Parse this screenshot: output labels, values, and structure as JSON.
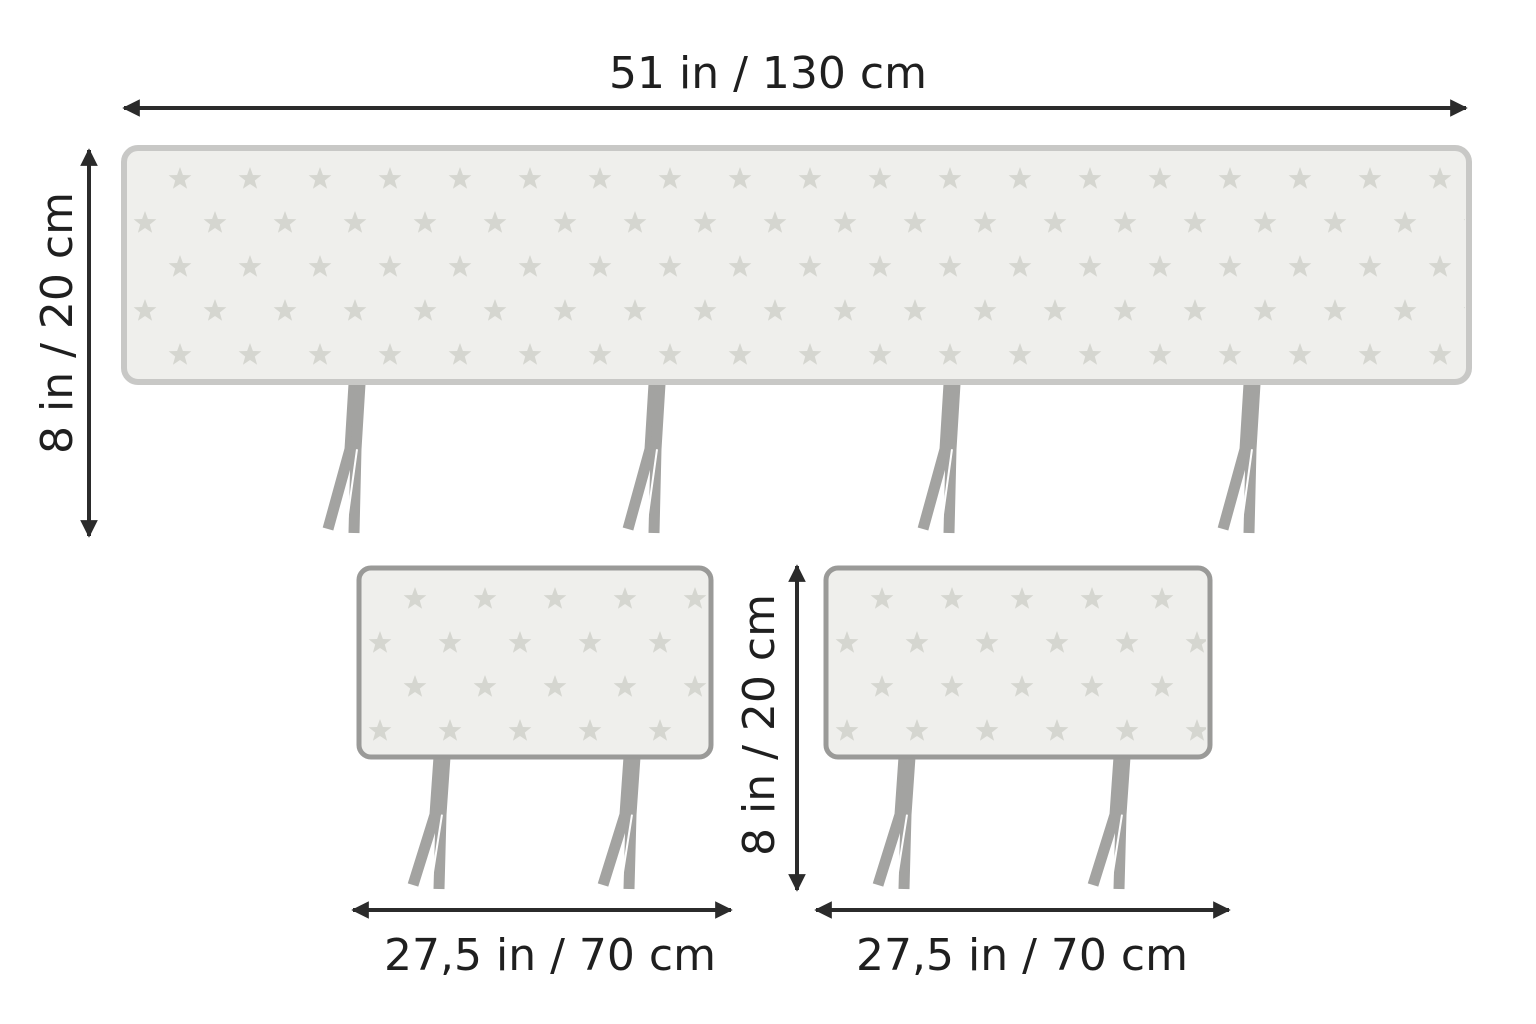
{
  "labels": {
    "main_width": "51 in / 130 cm",
    "main_height": "8 in / 20 cm",
    "small_height": "8 in / 20 cm",
    "small_left_width": "27,5 in / 70 cm",
    "small_right_width": "27,5 in / 70 cm"
  },
  "colors": {
    "panel_fill": "#efefec",
    "panel_border_main": "#c8c8c6",
    "panel_border_small": "#9a9a98",
    "star": "#d5d6d0",
    "tie": "#a3a3a1",
    "arrow": "#2b2b2b"
  },
  "icons": {
    "pattern": "star-icon"
  }
}
